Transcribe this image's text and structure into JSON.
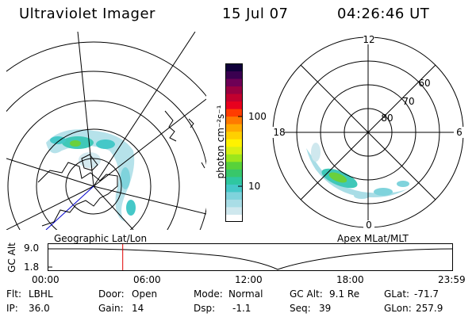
{
  "header": {
    "title": "Ultraviolet Imager",
    "date": "15 Jul 07",
    "time": "04:26:46 UT"
  },
  "colorbar": {
    "unit_label": "photon cm⁻²s⁻¹",
    "ticks": [
      "100",
      "10"
    ],
    "scale": "log",
    "colors": [
      "#ffffff",
      "#cfe8ee",
      "#a9dde6",
      "#7fd3dc",
      "#45c8c8",
      "#2fc7a0",
      "#38c76a",
      "#58d23a",
      "#9ce61c",
      "#d8ef12",
      "#fff200",
      "#ffd000",
      "#ffaa00",
      "#ff7a00",
      "#ff3c00",
      "#e8001e",
      "#c2002e",
      "#9a0040",
      "#6e0056",
      "#3a0050",
      "#10003a"
    ]
  },
  "left_map": {
    "label": "Geographic Lat/Lon",
    "colors": {
      "aurora_light": "#7fd3dc",
      "aurora_mid": "#3fc8b8",
      "aurora_bright": "#6ad03c",
      "grid": "#000000",
      "coast": "#000000",
      "longitude_line": "#0000cc"
    }
  },
  "right_map": {
    "label": "Apex MLat/MLT",
    "clock_labels": {
      "top": "12",
      "left": "18",
      "right": "6",
      "bottom": "0"
    },
    "lat_labels": [
      "60",
      "70",
      "80"
    ]
  },
  "alt_plot": {
    "ylabel": "GC Alt",
    "yticks": [
      "9.0",
      "1.8"
    ],
    "xticks": [
      "00:00",
      "06:00",
      "12:00",
      "18:00",
      "23:59"
    ],
    "marker_time": "04:26:46",
    "marker_color": "#e00000"
  },
  "footer": {
    "rows": [
      [
        {
          "k": "Flt:",
          "v": "LBHL"
        },
        {
          "k": "Door:",
          "v": "Open"
        },
        {
          "k": "Mode:",
          "v": "Normal"
        },
        {
          "k": "GC Alt:",
          "v": "9.1 Re"
        },
        {
          "k": "GLat:",
          "v": "-71.7"
        }
      ],
      [
        {
          "k": "IP:",
          "v": "36.0"
        },
        {
          "k": "Gain:",
          "v": "14"
        },
        {
          "k": "Dsp:",
          "v": "-1.1"
        },
        {
          "k": "Seq:",
          "v": "39"
        },
        {
          "k": "GLon:",
          "v": "257.9"
        }
      ]
    ]
  }
}
